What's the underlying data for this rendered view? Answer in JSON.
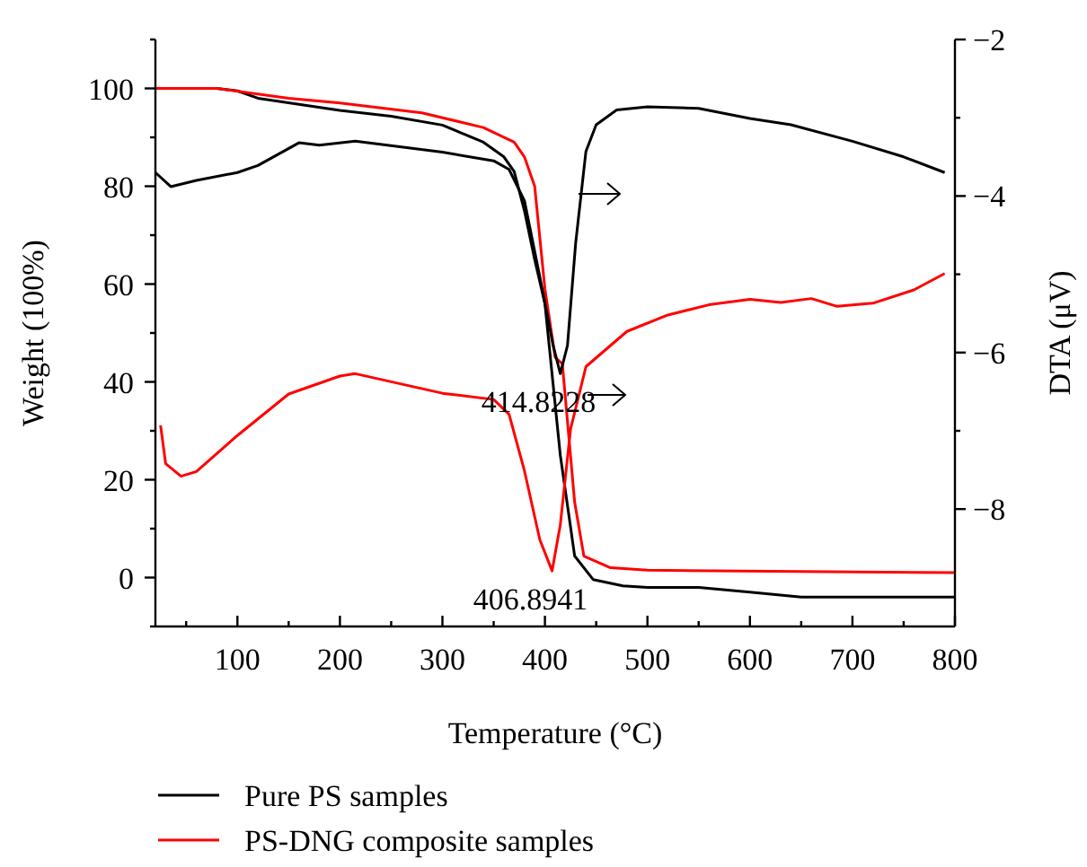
{
  "chart_data": {
    "type": "line",
    "xlabel": "Temperature (°C)",
    "ylabel": "Weight (100%)",
    "y2label": "DTA (μV)",
    "xlim": [
      20,
      800
    ],
    "xticks": [
      100,
      200,
      300,
      400,
      500,
      600,
      700,
      800
    ],
    "ylim": [
      -10,
      110
    ],
    "yticks": [
      0,
      20,
      40,
      60,
      80,
      100
    ],
    "y2lim": [
      -9.5,
      -2
    ],
    "y2ticks": [
      -8,
      -6,
      -4,
      -2
    ],
    "grid": false,
    "legend": "bottom",
    "marker": "none",
    "line_style": "solid",
    "annotations": [
      {
        "text": "414.8228",
        "x": 414.8228,
        "y": 41.9
      },
      {
        "text": "406.8941",
        "x": 406.8941,
        "y": 1.5
      }
    ],
    "series": [
      {
        "name": "Pure PS samples",
        "color": "#000000",
        "x": [
          20,
          80,
          100,
          120,
          200,
          250,
          300,
          340,
          360,
          370,
          380,
          390,
          400,
          415,
          424,
          429,
          447,
          476,
          500,
          550,
          600,
          650,
          700,
          800
        ],
        "values": [
          100,
          100,
          99.5,
          98,
          95.5,
          94.3,
          92.5,
          89,
          86,
          83,
          75,
          65,
          56,
          25,
          11.8,
          4.4,
          -0.4,
          -1.7,
          -2,
          -2,
          -3,
          -4,
          -4,
          -4
        ]
      },
      {
        "name": "PS-DNG composite samples",
        "color": "#ff0000",
        "x": [
          20,
          80,
          150,
          200,
          280,
          340,
          370,
          380,
          390,
          400,
          410,
          417,
          429,
          438,
          464,
          500,
          800
        ],
        "values": [
          100,
          100,
          98,
          97,
          95,
          92,
          89,
          86,
          80,
          59,
          45,
          43.7,
          15.4,
          4.4,
          2,
          1.5,
          1
        ]
      },
      {
        "color": "#000000",
        "axis": "y2",
        "x": [
          20,
          35,
          60,
          100,
          120,
          160,
          180,
          215,
          300,
          350,
          365,
          380,
          395,
          408,
          415,
          422,
          430,
          440,
          450,
          470,
          500,
          550,
          600,
          640,
          700,
          750,
          790
        ],
        "values": [
          -3.7,
          -3.88,
          -3.8,
          -3.7,
          -3.61,
          -3.32,
          -3.35,
          -3.3,
          -3.44,
          -3.55,
          -3.66,
          -4.06,
          -5.03,
          -5.91,
          -6.27,
          -5.91,
          -4.6,
          -3.43,
          -3.09,
          -2.9,
          -2.86,
          -2.88,
          -3.01,
          -3.09,
          -3.3,
          -3.5,
          -3.7
        ]
      },
      {
        "color": "#ff0000",
        "axis": "y2",
        "x": [
          25,
          30,
          45,
          60,
          100,
          150,
          200,
          215,
          300,
          350,
          365,
          380,
          395,
          407,
          415,
          425,
          440,
          480,
          520,
          560,
          600,
          630,
          660,
          685,
          720,
          760,
          790
        ],
        "values": [
          -6.93,
          -7.42,
          -7.58,
          -7.52,
          -7.06,
          -6.53,
          -6.3,
          -6.27,
          -6.52,
          -6.6,
          -6.79,
          -7.51,
          -8.39,
          -8.79,
          -8.2,
          -6.98,
          -6.18,
          -5.73,
          -5.52,
          -5.39,
          -5.32,
          -5.36,
          -5.31,
          -5.41,
          -5.37,
          -5.2,
          -4.99
        ]
      }
    ]
  }
}
